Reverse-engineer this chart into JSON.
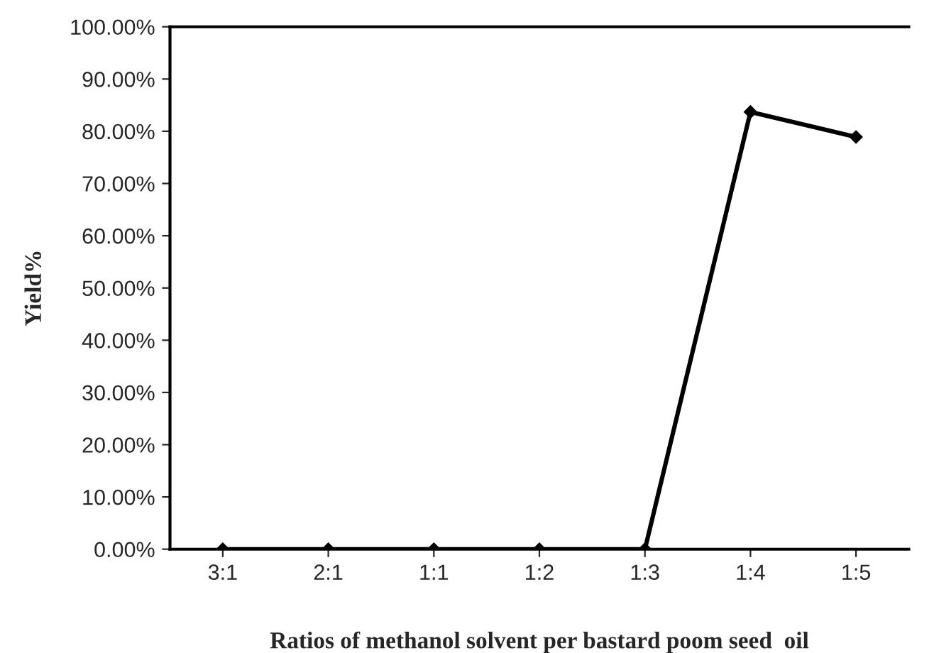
{
  "chart_data": {
    "type": "line",
    "xlabel": "Ratios of methanol solvent per bastard poom seed  oil",
    "ylabel": "Yield%",
    "categories": [
      "3:1",
      "2:1",
      "1:1",
      "1:2",
      "1:3",
      "1:4",
      "1:5"
    ],
    "series": [
      {
        "color": "#000000",
        "values": [
          0,
          0,
          0,
          0,
          0,
          83.7,
          78.9
        ]
      }
    ],
    "ylim": [
      0,
      100
    ],
    "yticks": [
      {
        "value": 0,
        "label": "0.00%"
      },
      {
        "value": 10,
        "label": "10.00%"
      },
      {
        "value": 20,
        "label": "20.00%"
      },
      {
        "value": 30,
        "label": "30.00%"
      },
      {
        "value": 40,
        "label": "40.00%"
      },
      {
        "value": 50,
        "label": "50.00%"
      },
      {
        "value": 60,
        "label": "60.00%"
      },
      {
        "value": 70,
        "label": "70.00%"
      },
      {
        "value": 80,
        "label": "80.00%"
      },
      {
        "value": 90,
        "label": "90.00%"
      },
      {
        "value": 100,
        "label": "100.00%"
      }
    ],
    "grid": false,
    "marker": "diamond",
    "line_style": "solid"
  }
}
